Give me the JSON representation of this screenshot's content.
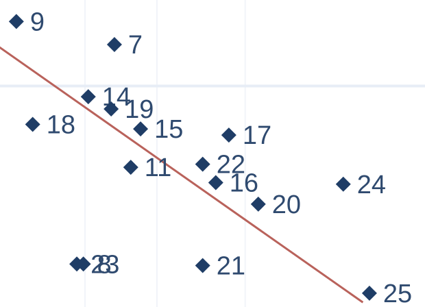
{
  "chart_data": {
    "type": "scatter",
    "title": "",
    "xlabel": "",
    "ylabel": "",
    "grid": true,
    "legend": "none",
    "colors": {
      "marker": "#1f3d66",
      "label": "#2f4a6f",
      "trendline": "#b9625b",
      "grid": "#e7edf6"
    },
    "points": [
      {
        "label": "9",
        "x": 0.5,
        "y": 10.3
      },
      {
        "label": "7",
        "x": 3.5,
        "y": 9.55
      },
      {
        "label": "14",
        "x": 2.7,
        "y": 7.85
      },
      {
        "label": "18",
        "x": 1.0,
        "y": 6.95
      },
      {
        "label": "19",
        "x": 3.4,
        "y": 7.45
      },
      {
        "label": "15",
        "x": 4.3,
        "y": 6.8
      },
      {
        "label": "17",
        "x": 7.0,
        "y": 6.6
      },
      {
        "label": "11",
        "x": 4.0,
        "y": 5.55
      },
      {
        "label": "22",
        "x": 6.2,
        "y": 5.65
      },
      {
        "label": "16",
        "x": 6.6,
        "y": 5.05
      },
      {
        "label": "20",
        "x": 7.9,
        "y": 4.35
      },
      {
        "label": "24",
        "x": 10.5,
        "y": 5.0
      },
      {
        "label": "23",
        "x": 2.35,
        "y": 2.4
      },
      {
        "label": "8",
        "x": 2.55,
        "y": 2.4
      },
      {
        "label": "21",
        "x": 6.2,
        "y": 2.35
      },
      {
        "label": "25",
        "x": 11.3,
        "y": 1.45
      }
    ],
    "trendline": {
      "x": [
        -0.2,
        11.1
      ],
      "y": [
        9.6,
        1.15
      ]
    },
    "xlim": [
      0,
      13
    ],
    "ylim": [
      1,
      11
    ]
  }
}
